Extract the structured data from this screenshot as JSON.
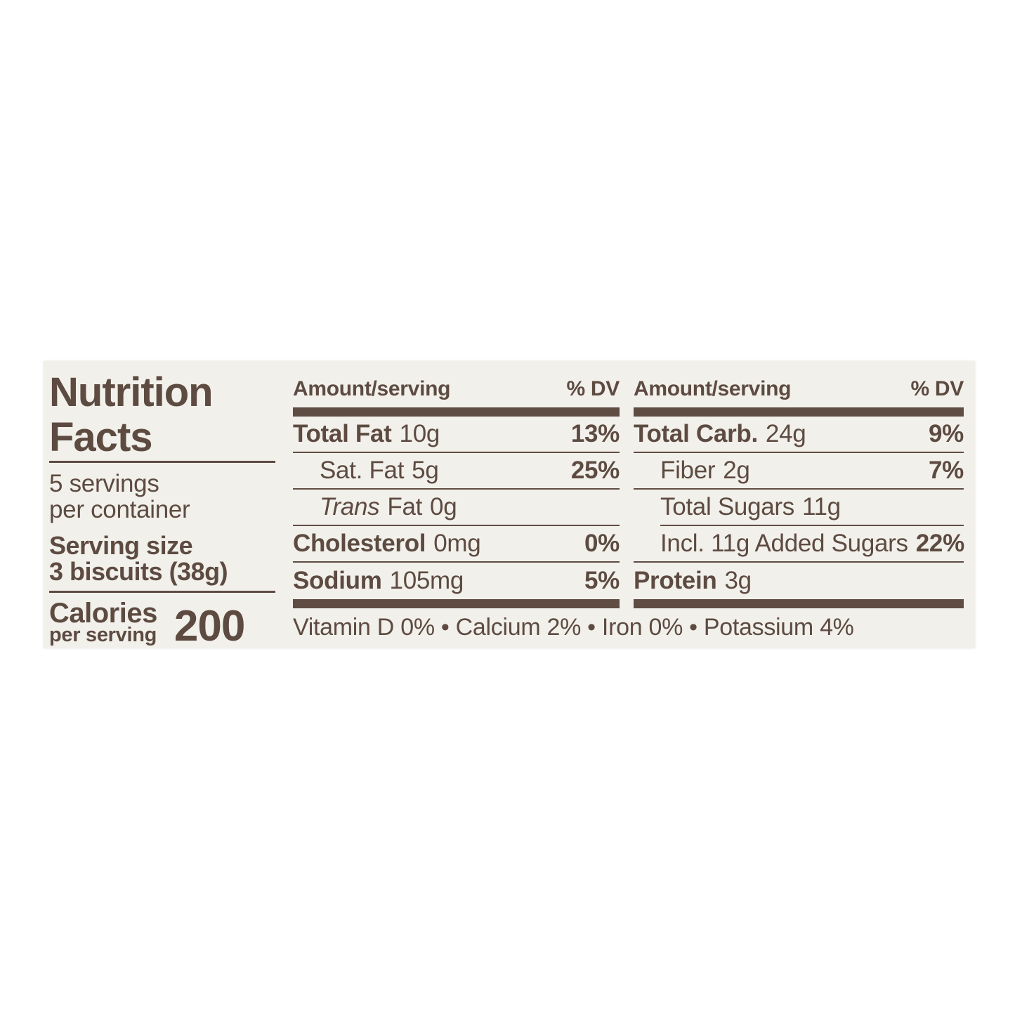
{
  "label": {
    "background_color": "#f2f0ea",
    "ink_color": "#5d4b42",
    "title_line1": "Nutrition",
    "title_line2": "Facts",
    "servings_count": "5 servings",
    "servings_per": "per container",
    "serving_size_label": "Serving size",
    "serving_size_value": "3 biscuits (38g)",
    "calories_label": "Calories",
    "calories_sub": "per serving",
    "calories_value": "200",
    "col_header_left": "Amount/serving",
    "col_header_right": "% DV",
    "mid": {
      "rows": [
        {
          "name": "Total Fat",
          "amount": "10g",
          "dv": "13%"
        },
        {
          "name": "Sat. Fat",
          "amount": "5g",
          "dv": "25%"
        },
        {
          "name_italic": "Trans",
          "name": "Fat",
          "amount": "0g",
          "dv": ""
        },
        {
          "name": "Cholesterol",
          "amount": "0mg",
          "dv": "0%"
        },
        {
          "name": "Sodium",
          "amount": "105mg",
          "dv": "5%"
        }
      ]
    },
    "right": {
      "rows": [
        {
          "name": "Total Carb.",
          "amount": "24g",
          "dv": "9%"
        },
        {
          "name": "Fiber",
          "amount": "2g",
          "dv": "7%"
        },
        {
          "name": "Total Sugars",
          "amount": "11g",
          "dv": ""
        },
        {
          "name": "Incl. 11g Added Sugars",
          "amount": "",
          "dv": "22%"
        },
        {
          "name": "Protein",
          "amount": "3g",
          "dv": ""
        }
      ]
    },
    "footer": "Vitamin D 0% • Calcium 2% • Iron 0% • Potassium 4%"
  }
}
